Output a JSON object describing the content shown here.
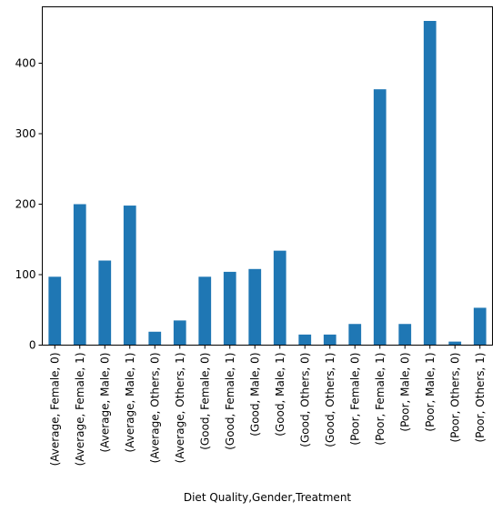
{
  "chart_data": {
    "type": "bar",
    "title": "",
    "xlabel": "Diet Quality,Gender,Treatment",
    "ylabel": "",
    "ylim": [
      0,
      480
    ],
    "yticks": [
      0,
      100,
      200,
      300,
      400
    ],
    "grid": false,
    "legend": "none",
    "bar_color": "#1f77b4",
    "categories": [
      "(Average, Female, 0)",
      "(Average, Female, 1)",
      "(Average, Male, 0)",
      "(Average, Male, 1)",
      "(Average, Others, 0)",
      "(Average, Others, 1)",
      "(Good, Female, 0)",
      "(Good, Female, 1)",
      "(Good, Male, 0)",
      "(Good, Male, 1)",
      "(Good, Others, 0)",
      "(Good, Others, 1)",
      "(Poor, Female, 0)",
      "(Poor, Female, 1)",
      "(Poor, Male, 0)",
      "(Poor, Male, 1)",
      "(Poor, Others, 0)",
      "(Poor, Others, 1)"
    ],
    "values": [
      97,
      200,
      120,
      198,
      19,
      35,
      97,
      104,
      108,
      134,
      15,
      15,
      30,
      363,
      30,
      460,
      5,
      53
    ]
  }
}
